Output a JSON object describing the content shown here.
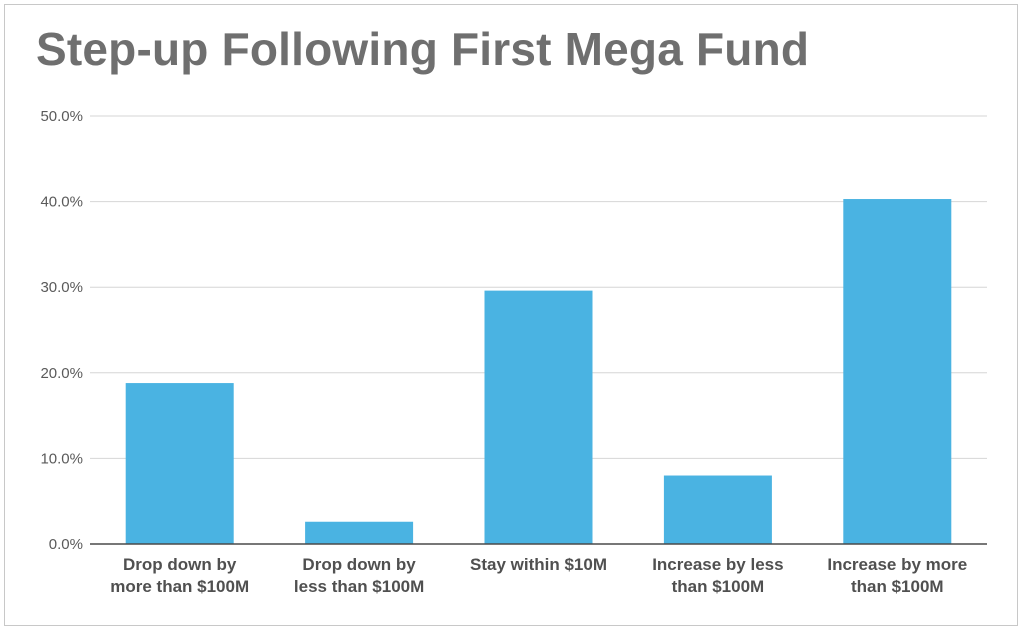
{
  "chart_data": {
    "type": "bar",
    "title": "Step-up Following First Mega Fund",
    "xlabel": "",
    "ylabel": "",
    "ylim": [
      0,
      50
    ],
    "y_ticks": [
      "0.0%",
      "10.0%",
      "20.0%",
      "30.0%",
      "40.0%",
      "50.0%"
    ],
    "y_tick_values": [
      0,
      10,
      20,
      30,
      40,
      50
    ],
    "grid": true,
    "bar_color": "#4ab3e2",
    "categories": [
      [
        "Drop down by",
        "more than $100M"
      ],
      [
        "Drop down by",
        "less than $100M"
      ],
      [
        "Stay within $10M"
      ],
      [
        "Increase by less",
        "than $100M"
      ],
      [
        "Increase by more",
        "than $100M"
      ]
    ],
    "values": [
      18.8,
      2.6,
      29.6,
      8.0,
      40.3
    ]
  }
}
